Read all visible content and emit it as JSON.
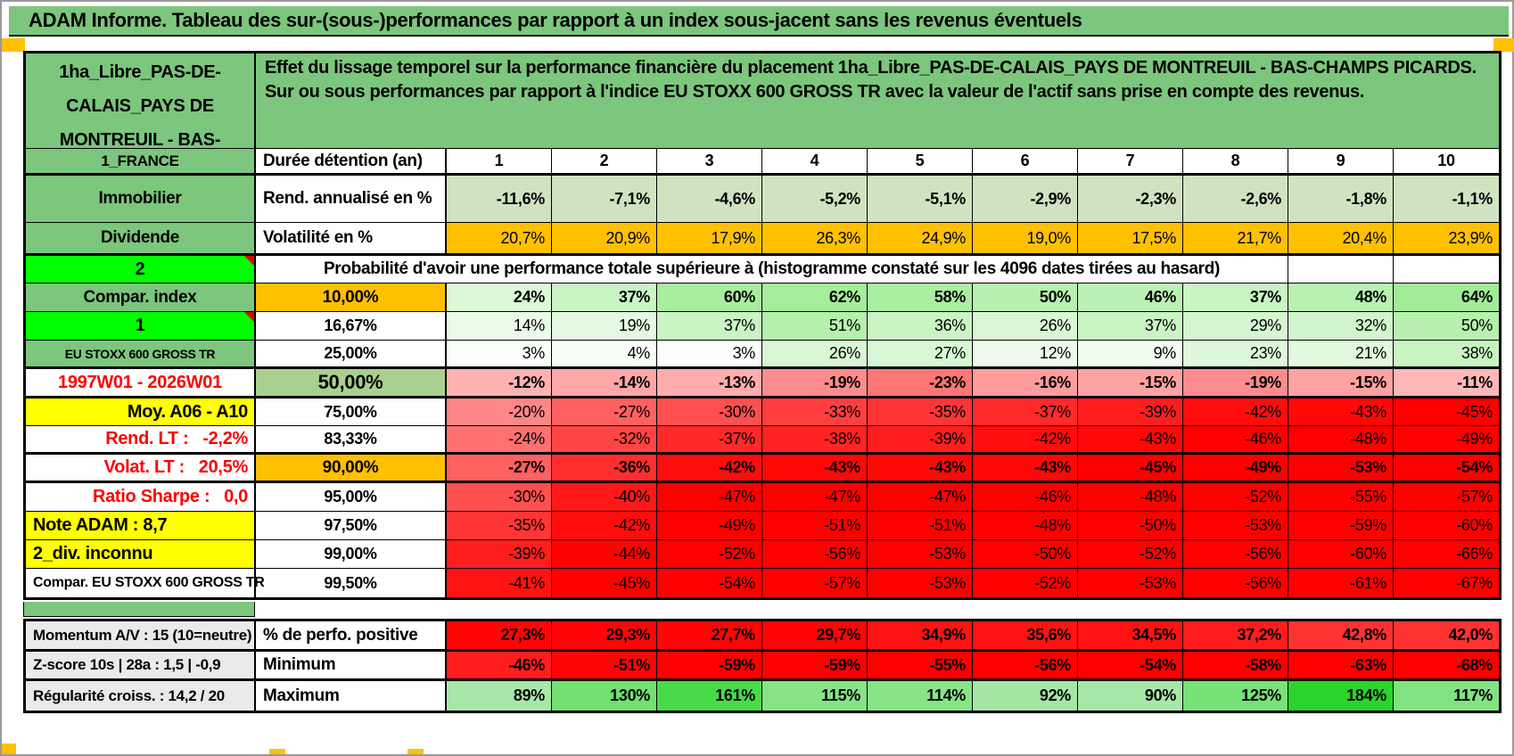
{
  "title": "ADAM Informe. Tableau des sur-(sous-)performances par rapport à un index sous-jacent sans les revenus éventuels",
  "colors": {
    "sheet_green": "#7cc67d",
    "bright_green": "#00ff00",
    "orange": "#ffc000",
    "yellow": "#ffff00",
    "muted_green": "#a9d08e",
    "red_text": "#ff0000",
    "gray_label": "#eaeaea",
    "solid_red": "#ff0000"
  },
  "header": {
    "asset_name": "1ha_Libre_PAS-DE-CALAIS_PAYS DE MONTREUIL - BAS-",
    "description": "Effet du lissage temporel sur la performance financière du placement 1ha_Libre_PAS-DE-CALAIS_PAYS DE MONTREUIL - BAS-CHAMPS PICARDS. Sur ou sous performances par rapport à l'indice EU STOXX 600 GROSS TR avec la valeur de l'actif sans prise en compte des revenus."
  },
  "columns": [
    "1",
    "2",
    "3",
    "4",
    "5",
    "6",
    "7",
    "8",
    "9",
    "10"
  ],
  "main_rows": [
    {
      "h": 30,
      "thick": true,
      "left": {
        "t": "1_FRANCE",
        "bg": "#7cc67d",
        "al": "c",
        "b": 1,
        "fs": 17
      },
      "label": {
        "t": "Durée détention (an)",
        "al": "l",
        "b": 1,
        "fs": 19
      },
      "align": "c",
      "bold": true,
      "cells": [
        {
          "t": "1"
        },
        {
          "t": "2"
        },
        {
          "t": "3"
        },
        {
          "t": "4"
        },
        {
          "t": "5"
        },
        {
          "t": "6"
        },
        {
          "t": "7"
        },
        {
          "t": "8"
        },
        {
          "t": "9"
        },
        {
          "t": "10"
        }
      ]
    },
    {
      "h": 53,
      "thick": false,
      "left": {
        "t": "Immobilier",
        "bg": "#7cc67d",
        "al": "c",
        "b": 1,
        "fs": 19
      },
      "label": {
        "t": "Rend. annualisé en %",
        "al": "l",
        "b": 1,
        "fs": 19
      },
      "align": "r",
      "bold": true,
      "cells": [
        {
          "t": "-11,6%",
          "bg": "#cfe3c1"
        },
        {
          "t": "-7,1%",
          "bg": "#cfe3c1"
        },
        {
          "t": "-4,6%",
          "bg": "#cfe3c1"
        },
        {
          "t": "-5,2%",
          "bg": "#cfe3c1"
        },
        {
          "t": "-5,1%",
          "bg": "#cfe3c1"
        },
        {
          "t": "-2,9%",
          "bg": "#cfe3c1"
        },
        {
          "t": "-2,3%",
          "bg": "#cfe3c1"
        },
        {
          "t": "-2,6%",
          "bg": "#cfe3c1"
        },
        {
          "t": "-1,8%",
          "bg": "#cfe3c1"
        },
        {
          "t": "-1,1%",
          "bg": "#cfe3c1"
        }
      ]
    },
    {
      "h": 37,
      "thick": true,
      "left": {
        "t": "Dividende",
        "bg": "#7cc67d",
        "al": "c",
        "b": 1,
        "fs": 19
      },
      "label": {
        "t": "Volatilité en %",
        "al": "l",
        "b": 1,
        "fs": 19
      },
      "align": "r",
      "bold": false,
      "cells": [
        {
          "t": "20,7%",
          "bg": "#ffc000"
        },
        {
          "t": "20,9%",
          "bg": "#ffc000"
        },
        {
          "t": "17,9%",
          "bg": "#ffc000"
        },
        {
          "t": "26,3%",
          "bg": "#ffc000"
        },
        {
          "t": "24,9%",
          "bg": "#ffc000"
        },
        {
          "t": "19,0%",
          "bg": "#ffc000"
        },
        {
          "t": "17,5%",
          "bg": "#ffc000"
        },
        {
          "t": "21,7%",
          "bg": "#ffc000"
        },
        {
          "t": "20,4%",
          "bg": "#ffc000"
        },
        {
          "t": "23,9%",
          "bg": "#ffc000"
        }
      ]
    },
    {
      "h": 31,
      "thick": false,
      "span": true,
      "left": {
        "t": "2",
        "bg": "#00ff00",
        "al": "c",
        "b": 1,
        "fs": 20,
        "note": 1
      },
      "label": {
        "t": "Probabilité d'avoir une performance totale supérieure à (histogramme constaté sur les 4096 dates tirées au hasard)",
        "al": "c",
        "b": 1,
        "fs": 19
      },
      "align": "r",
      "bold": false,
      "cells": [
        {
          "t": ""
        },
        {
          "t": ""
        }
      ]
    },
    {
      "h": 32,
      "thick": false,
      "left": {
        "t": "Compar. index",
        "bg": "#7cc67d",
        "al": "c",
        "b": 1,
        "fs": 19
      },
      "label": {
        "t": "10,00%",
        "bg": "#ffc000",
        "al": "c",
        "b": 1,
        "fs": 19
      },
      "align": "r",
      "bold": true,
      "cells": [
        {
          "t": "24%",
          "bg": "#dcf8d9"
        },
        {
          "t": "37%",
          "bg": "#c9f4c4"
        },
        {
          "t": "60%",
          "bg": "#a8ed9f"
        },
        {
          "t": "62%",
          "bg": "#a5ec9c"
        },
        {
          "t": "58%",
          "bg": "#abeea2"
        },
        {
          "t": "50%",
          "bg": "#b7f0af"
        },
        {
          "t": "46%",
          "bg": "#bcf1b5"
        },
        {
          "t": "37%",
          "bg": "#c9f4c4"
        },
        {
          "t": "48%",
          "bg": "#b9f1b2"
        },
        {
          "t": "64%",
          "bg": "#a2ec99"
        }
      ]
    },
    {
      "h": 32,
      "thick": false,
      "left": {
        "t": "1",
        "bg": "#00ff00",
        "al": "c",
        "b": 1,
        "fs": 20,
        "note": 1
      },
      "label": {
        "t": "16,67%",
        "al": "c",
        "b": 1,
        "fs": 18
      },
      "align": "r",
      "bold": false,
      "cells": [
        {
          "t": "14%",
          "bg": "#ebfbe9"
        },
        {
          "t": "19%",
          "bg": "#e3f9e1"
        },
        {
          "t": "37%",
          "bg": "#c9f4c4"
        },
        {
          "t": "51%",
          "bg": "#b5f0ad"
        },
        {
          "t": "36%",
          "bg": "#cbf4c5"
        },
        {
          "t": "26%",
          "bg": "#d9f7d5"
        },
        {
          "t": "37%",
          "bg": "#c9f4c4"
        },
        {
          "t": "29%",
          "bg": "#d5f6d1"
        },
        {
          "t": "32%",
          "bg": "#d1f5cc"
        },
        {
          "t": "50%",
          "bg": "#b7f0af"
        }
      ]
    },
    {
      "h": 32,
      "thick": true,
      "left": {
        "t": "EU STOXX 600 GROSS TR",
        "bg": "#7cc67d",
        "al": "c",
        "b": 1,
        "fs": 14
      },
      "label": {
        "t": "25,00%",
        "al": "c",
        "b": 1,
        "fs": 18
      },
      "align": "r",
      "bold": false,
      "cells": [
        {
          "t": "3%",
          "bg": "#fbfefa"
        },
        {
          "t": "4%",
          "bg": "#f9fef9"
        },
        {
          "t": "3%",
          "bg": "#fbfefa"
        },
        {
          "t": "26%",
          "bg": "#d9f7d5"
        },
        {
          "t": "27%",
          "bg": "#d8f7d4"
        },
        {
          "t": "12%",
          "bg": "#eefbec"
        },
        {
          "t": "9%",
          "bg": "#f2fcf1"
        },
        {
          "t": "23%",
          "bg": "#def8da"
        },
        {
          "t": "21%",
          "bg": "#e1f9dd"
        },
        {
          "t": "38%",
          "bg": "#c8f4c2"
        }
      ]
    },
    {
      "h": 33,
      "thick": true,
      "left": {
        "t": "1997W01 - 2026W01",
        "al": "c",
        "b": 1,
        "fs": 20,
        "fg": "#ff0000"
      },
      "label": {
        "t": "50,00%",
        "bg": "#a9d08e",
        "al": "c",
        "b": 1,
        "fs": 22
      },
      "align": "r",
      "bold": true,
      "cells": [
        {
          "t": "-12%",
          "bg": "#ffb2b2"
        },
        {
          "t": "-14%",
          "bg": "#ffa7a7"
        },
        {
          "t": "-13%",
          "bg": "#ffadad"
        },
        {
          "t": "-19%",
          "bg": "#ff8c8c"
        },
        {
          "t": "-23%",
          "bg": "#ff7676"
        },
        {
          "t": "-16%",
          "bg": "#ff9c9c"
        },
        {
          "t": "-15%",
          "bg": "#ffa2a2"
        },
        {
          "t": "-19%",
          "bg": "#ff8c8c"
        },
        {
          "t": "-15%",
          "bg": "#ffa2a2"
        },
        {
          "t": "-11%",
          "bg": "#ffb8b8"
        }
      ]
    },
    {
      "h": 31,
      "thick": false,
      "left": {
        "t": "Moy. A06 - A10",
        "bg": "#ffff00",
        "al": "r",
        "b": 1,
        "fs": 20
      },
      "label": {
        "t": "75,00%",
        "al": "c",
        "b": 1,
        "fs": 18
      },
      "align": "r",
      "bold": false,
      "cells": [
        {
          "t": "-20%",
          "bg": "#ff8686"
        },
        {
          "t": "-27%",
          "bg": "#ff6060"
        },
        {
          "t": "-30%",
          "bg": "#ff4f4f"
        },
        {
          "t": "-33%",
          "bg": "#ff3f3f"
        },
        {
          "t": "-35%",
          "bg": "#ff3434"
        },
        {
          "t": "-37%",
          "bg": "#ff2929"
        },
        {
          "t": "-39%",
          "bg": "#ff1e1e"
        },
        {
          "t": "-42%",
          "bg": "#ff0d0d"
        },
        {
          "t": "-43%",
          "bg": "#ff0808"
        },
        {
          "t": "-45%",
          "bg": "#ff0000"
        }
      ]
    },
    {
      "h": 32,
      "thick": true,
      "left": {
        "t": "Rend. LT :   -2,2%",
        "al": "r",
        "b": 1,
        "fs": 20,
        "fg": "#ff0000"
      },
      "label": {
        "t": "83,33%",
        "al": "c",
        "b": 1,
        "fs": 18
      },
      "align": "r",
      "bold": false,
      "cells": [
        {
          "t": "-24%",
          "bg": "#ff7070"
        },
        {
          "t": "-32%",
          "bg": "#ff4444"
        },
        {
          "t": "-37%",
          "bg": "#ff2929"
        },
        {
          "t": "-38%",
          "bg": "#ff2323"
        },
        {
          "t": "-39%",
          "bg": "#ff1e1e"
        },
        {
          "t": "-42%",
          "bg": "#ff0d0d"
        },
        {
          "t": "-43%",
          "bg": "#ff0808"
        },
        {
          "t": "-46%",
          "bg": "#ff0000"
        },
        {
          "t": "-48%",
          "bg": "#ff0000"
        },
        {
          "t": "-49%",
          "bg": "#ff0000"
        }
      ]
    },
    {
      "h": 32,
      "thick": true,
      "left": {
        "t": "Volat. LT :   20,5%",
        "al": "r",
        "b": 1,
        "fs": 20,
        "fg": "#ff0000"
      },
      "label": {
        "t": "90,00%",
        "bg": "#ffc000",
        "al": "c",
        "b": 1,
        "fs": 19
      },
      "align": "r",
      "bold": true,
      "cells": [
        {
          "t": "-27%",
          "bg": "#ff6060"
        },
        {
          "t": "-36%",
          "bg": "#ff2e2e"
        },
        {
          "t": "-42%",
          "bg": "#ff0d0d"
        },
        {
          "t": "-43%",
          "bg": "#ff0808"
        },
        {
          "t": "-43%",
          "bg": "#ff0808"
        },
        {
          "t": "-43%",
          "bg": "#ff0808"
        },
        {
          "t": "-45%",
          "bg": "#ff0000"
        },
        {
          "t": "-49%",
          "bg": "#ff0000"
        },
        {
          "t": "-53%",
          "bg": "#ff0000"
        },
        {
          "t": "-54%",
          "bg": "#ff0000"
        }
      ]
    },
    {
      "h": 32,
      "thick": false,
      "left": {
        "t": "Ratio Sharpe :   0,0",
        "al": "r",
        "b": 1,
        "fs": 20,
        "fg": "#ff0000"
      },
      "label": {
        "t": "95,00%",
        "al": "c",
        "b": 1,
        "fs": 18
      },
      "align": "r",
      "bold": false,
      "cells": [
        {
          "t": "-30%",
          "bg": "#ff4f4f"
        },
        {
          "t": "-40%",
          "bg": "#ff1818"
        },
        {
          "t": "-47%",
          "bg": "#ff0000"
        },
        {
          "t": "-47%",
          "bg": "#ff0000"
        },
        {
          "t": "-47%",
          "bg": "#ff0000"
        },
        {
          "t": "-46%",
          "bg": "#ff0000"
        },
        {
          "t": "-48%",
          "bg": "#ff0000"
        },
        {
          "t": "-52%",
          "bg": "#ff0000"
        },
        {
          "t": "-55%",
          "bg": "#ff0000"
        },
        {
          "t": "-57%",
          "bg": "#ff0000"
        }
      ]
    },
    {
      "h": 32,
      "thick": false,
      "left": {
        "t": "Note ADAM : 8,7",
        "bg": "#ffff00",
        "al": "l",
        "b": 1,
        "fs": 20
      },
      "label": {
        "t": "97,50%",
        "al": "c",
        "b": 1,
        "fs": 18
      },
      "align": "r",
      "bold": false,
      "cells": [
        {
          "t": "-35%",
          "bg": "#ff3434"
        },
        {
          "t": "-42%",
          "bg": "#ff0d0d"
        },
        {
          "t": "-49%",
          "bg": "#ff0000"
        },
        {
          "t": "-51%",
          "bg": "#ff0000"
        },
        {
          "t": "-51%",
          "bg": "#ff0000"
        },
        {
          "t": "-48%",
          "bg": "#ff0000"
        },
        {
          "t": "-50%",
          "bg": "#ff0000"
        },
        {
          "t": "-53%",
          "bg": "#ff0000"
        },
        {
          "t": "-59%",
          "bg": "#ff0000"
        },
        {
          "t": "-60%",
          "bg": "#ff0000"
        }
      ]
    },
    {
      "h": 32,
      "thick": false,
      "left": {
        "t": "2_div. inconnu",
        "bg": "#ffff00",
        "al": "l",
        "b": 1,
        "fs": 20
      },
      "label": {
        "t": "99,00%",
        "al": "c",
        "b": 1,
        "fs": 18
      },
      "align": "r",
      "bold": false,
      "cells": [
        {
          "t": "-39%",
          "bg": "#ff1e1e"
        },
        {
          "t": "-44%",
          "bg": "#ff0202"
        },
        {
          "t": "-52%",
          "bg": "#ff0000"
        },
        {
          "t": "-56%",
          "bg": "#ff0000"
        },
        {
          "t": "-53%",
          "bg": "#ff0000"
        },
        {
          "t": "-50%",
          "bg": "#ff0000"
        },
        {
          "t": "-52%",
          "bg": "#ff0000"
        },
        {
          "t": "-56%",
          "bg": "#ff0000"
        },
        {
          "t": "-60%",
          "bg": "#ff0000"
        },
        {
          "t": "-66%",
          "bg": "#ff0000"
        }
      ]
    },
    {
      "h": 32,
      "thick": false,
      "left": {
        "t": "Compar. EU STOXX 600 GROSS TR",
        "al": "l",
        "b": 1,
        "fs": 16
      },
      "label": {
        "t": "99,50%",
        "al": "c",
        "b": 1,
        "fs": 18
      },
      "align": "r",
      "bold": false,
      "cells": [
        {
          "t": "-41%",
          "bg": "#ff1313"
        },
        {
          "t": "-45%",
          "bg": "#ff0000"
        },
        {
          "t": "-54%",
          "bg": "#ff0000"
        },
        {
          "t": "-57%",
          "bg": "#ff0000"
        },
        {
          "t": "-53%",
          "bg": "#ff0000"
        },
        {
          "t": "-52%",
          "bg": "#ff0000"
        },
        {
          "t": "-53%",
          "bg": "#ff0000"
        },
        {
          "t": "-56%",
          "bg": "#ff0000"
        },
        {
          "t": "-61%",
          "bg": "#ff0000"
        },
        {
          "t": "-67%",
          "bg": "#ff0000"
        }
      ]
    }
  ],
  "bottom_rows": [
    {
      "h": 34,
      "thick": true,
      "left": {
        "t": "Momentum A/V : 15 (10=neutre)",
        "bg": "#eaeaea",
        "al": "l",
        "b": 1,
        "fs": 17
      },
      "label": {
        "t": "% de perfo. positive",
        "al": "l",
        "b": 1,
        "fs": 19
      },
      "align": "r",
      "bold": true,
      "cells": [
        {
          "t": "27,3%",
          "bg": "#ff0505"
        },
        {
          "t": "29,3%",
          "bg": "#ff0505"
        },
        {
          "t": "27,7%",
          "bg": "#ff0505"
        },
        {
          "t": "29,7%",
          "bg": "#ff0505"
        },
        {
          "t": "34,9%",
          "bg": "#ff1212"
        },
        {
          "t": "35,6%",
          "bg": "#ff1212"
        },
        {
          "t": "34,5%",
          "bg": "#ff1212"
        },
        {
          "t": "37,2%",
          "bg": "#ff1c1c"
        },
        {
          "t": "42,8%",
          "bg": "#ff3232"
        },
        {
          "t": "42,0%",
          "bg": "#ff3232"
        }
      ]
    },
    {
      "h": 33,
      "thick": true,
      "left": {
        "t": "Z-score 10s | 28a : 1,5 | -0,9",
        "bg": "#eaeaea",
        "al": "l",
        "b": 1,
        "fs": 17
      },
      "label": {
        "t": "Minimum",
        "al": "l",
        "b": 1,
        "fs": 19
      },
      "align": "r",
      "bold": true,
      "cells": [
        {
          "t": "-46%",
          "bg": "#ff1e1e"
        },
        {
          "t": "-51%",
          "bg": "#ff0606"
        },
        {
          "t": "-59%",
          "bg": "#ff0000"
        },
        {
          "t": "-59%",
          "bg": "#ff0000"
        },
        {
          "t": "-55%",
          "bg": "#ff0000"
        },
        {
          "t": "-56%",
          "bg": "#ff0000"
        },
        {
          "t": "-54%",
          "bg": "#ff0000"
        },
        {
          "t": "-58%",
          "bg": "#ff0000"
        },
        {
          "t": "-63%",
          "bg": "#ff0000"
        },
        {
          "t": "-68%",
          "bg": "#ff0000"
        }
      ]
    },
    {
      "h": 33,
      "thick": false,
      "left": {
        "t": "Régularité croiss. : 14,2 / 20",
        "bg": "#eaeaea",
        "al": "l",
        "b": 1,
        "fs": 17
      },
      "label": {
        "t": "Maximum",
        "al": "l",
        "b": 1,
        "fs": 19
      },
      "align": "r",
      "bold": true,
      "cells": [
        {
          "t": "89%",
          "bg": "#a9e7a9"
        },
        {
          "t": "130%",
          "bg": "#72e072"
        },
        {
          "t": "161%",
          "bg": "#49da49"
        },
        {
          "t": "115%",
          "bg": "#86e386"
        },
        {
          "t": "114%",
          "bg": "#87e487"
        },
        {
          "t": "92%",
          "bg": "#a5e6a5"
        },
        {
          "t": "90%",
          "bg": "#a7e7a7"
        },
        {
          "t": "125%",
          "bg": "#78e178"
        },
        {
          "t": "184%",
          "bg": "#2ad42a"
        },
        {
          "t": "117%",
          "bg": "#83e383"
        }
      ]
    }
  ]
}
